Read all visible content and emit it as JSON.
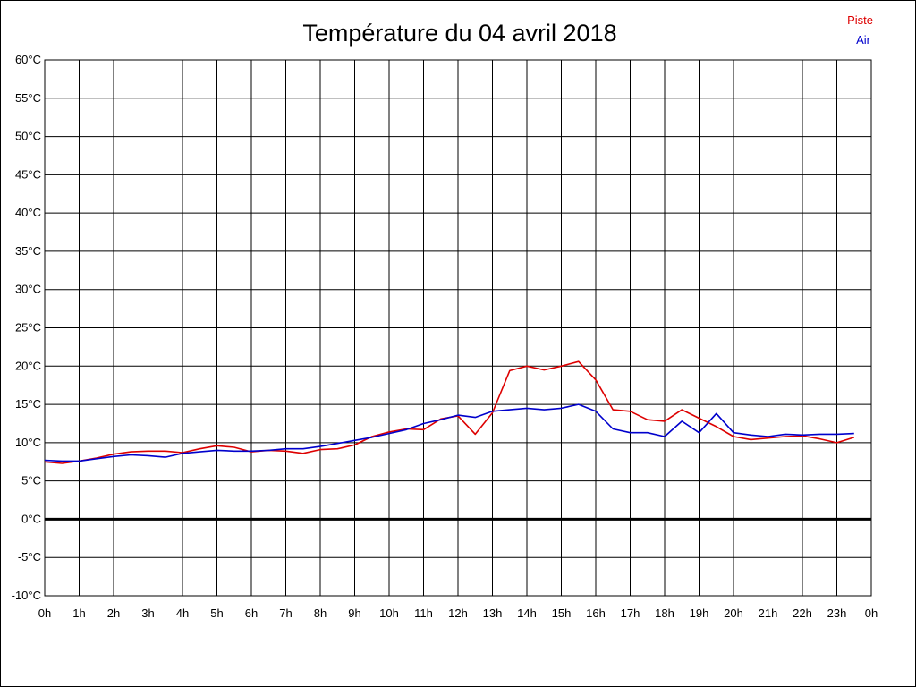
{
  "chart_data": {
    "type": "line",
    "title": "Température du 04 avril 2018",
    "xlabel": "",
    "ylabel": "",
    "x_ticks": [
      "0h",
      "1h",
      "2h",
      "3h",
      "4h",
      "5h",
      "6h",
      "7h",
      "8h",
      "9h",
      "10h",
      "11h",
      "12h",
      "13h",
      "14h",
      "15h",
      "16h",
      "17h",
      "18h",
      "19h",
      "20h",
      "21h",
      "22h",
      "23h",
      "0h"
    ],
    "y_ticks": [
      "60°C",
      "55°C",
      "50°C",
      "45°C",
      "40°C",
      "35°C",
      "30°C",
      "25°C",
      "20°C",
      "15°C",
      "10°C",
      "5°C",
      "0°C",
      "-5°C",
      "-10°C"
    ],
    "xlim": [
      0,
      24
    ],
    "ylim": [
      -10,
      60
    ],
    "grid": true,
    "zero_line": true,
    "legend_position": "top-right",
    "x": [
      0,
      0.5,
      1,
      1.5,
      2,
      2.5,
      3,
      3.5,
      4,
      4.5,
      5,
      5.5,
      6,
      6.5,
      7,
      7.5,
      8,
      8.5,
      9,
      9.5,
      10,
      10.5,
      11,
      11.5,
      12,
      12.5,
      13,
      13.5,
      14,
      14.5,
      15,
      15.5,
      16,
      16.5,
      17,
      17.5,
      18,
      18.5,
      19,
      19.5,
      20,
      20.5,
      21,
      21.5,
      22,
      22.5,
      23,
      23.5
    ],
    "series": [
      {
        "name": "Piste",
        "color": "#dd0000",
        "values": [
          7.5,
          7.3,
          7.6,
          8.0,
          8.5,
          8.8,
          8.9,
          8.9,
          8.7,
          9.2,
          9.6,
          9.4,
          8.8,
          9.0,
          8.9,
          8.6,
          9.1,
          9.2,
          9.7,
          10.8,
          11.4,
          11.8,
          11.7,
          13.1,
          13.5,
          11.1,
          13.9,
          19.4,
          20.0,
          19.5,
          20.0,
          20.6,
          18.2,
          14.3,
          14.1,
          13.0,
          12.8,
          14.3,
          13.2,
          12.1,
          10.8,
          10.4,
          10.6,
          10.8,
          10.9,
          10.5,
          10.0,
          10.7
        ],
        "visible_label": "Piste"
      },
      {
        "name": "Air",
        "color": "#0000cc",
        "values": [
          7.7,
          7.6,
          7.6,
          7.9,
          8.2,
          8.4,
          8.3,
          8.1,
          8.6,
          8.8,
          9.0,
          8.9,
          8.9,
          9.0,
          9.2,
          9.2,
          9.5,
          9.9,
          10.3,
          10.7,
          11.2,
          11.7,
          12.5,
          13.0,
          13.6,
          13.3,
          14.1,
          14.3,
          14.5,
          14.3,
          14.5,
          15.0,
          14.1,
          11.8,
          11.3,
          11.3,
          10.8,
          12.8,
          11.3,
          13.8,
          11.3,
          11.0,
          10.8,
          11.1,
          11.0,
          11.1,
          11.1,
          11.2
        ],
        "visible_label": "Air"
      }
    ]
  }
}
